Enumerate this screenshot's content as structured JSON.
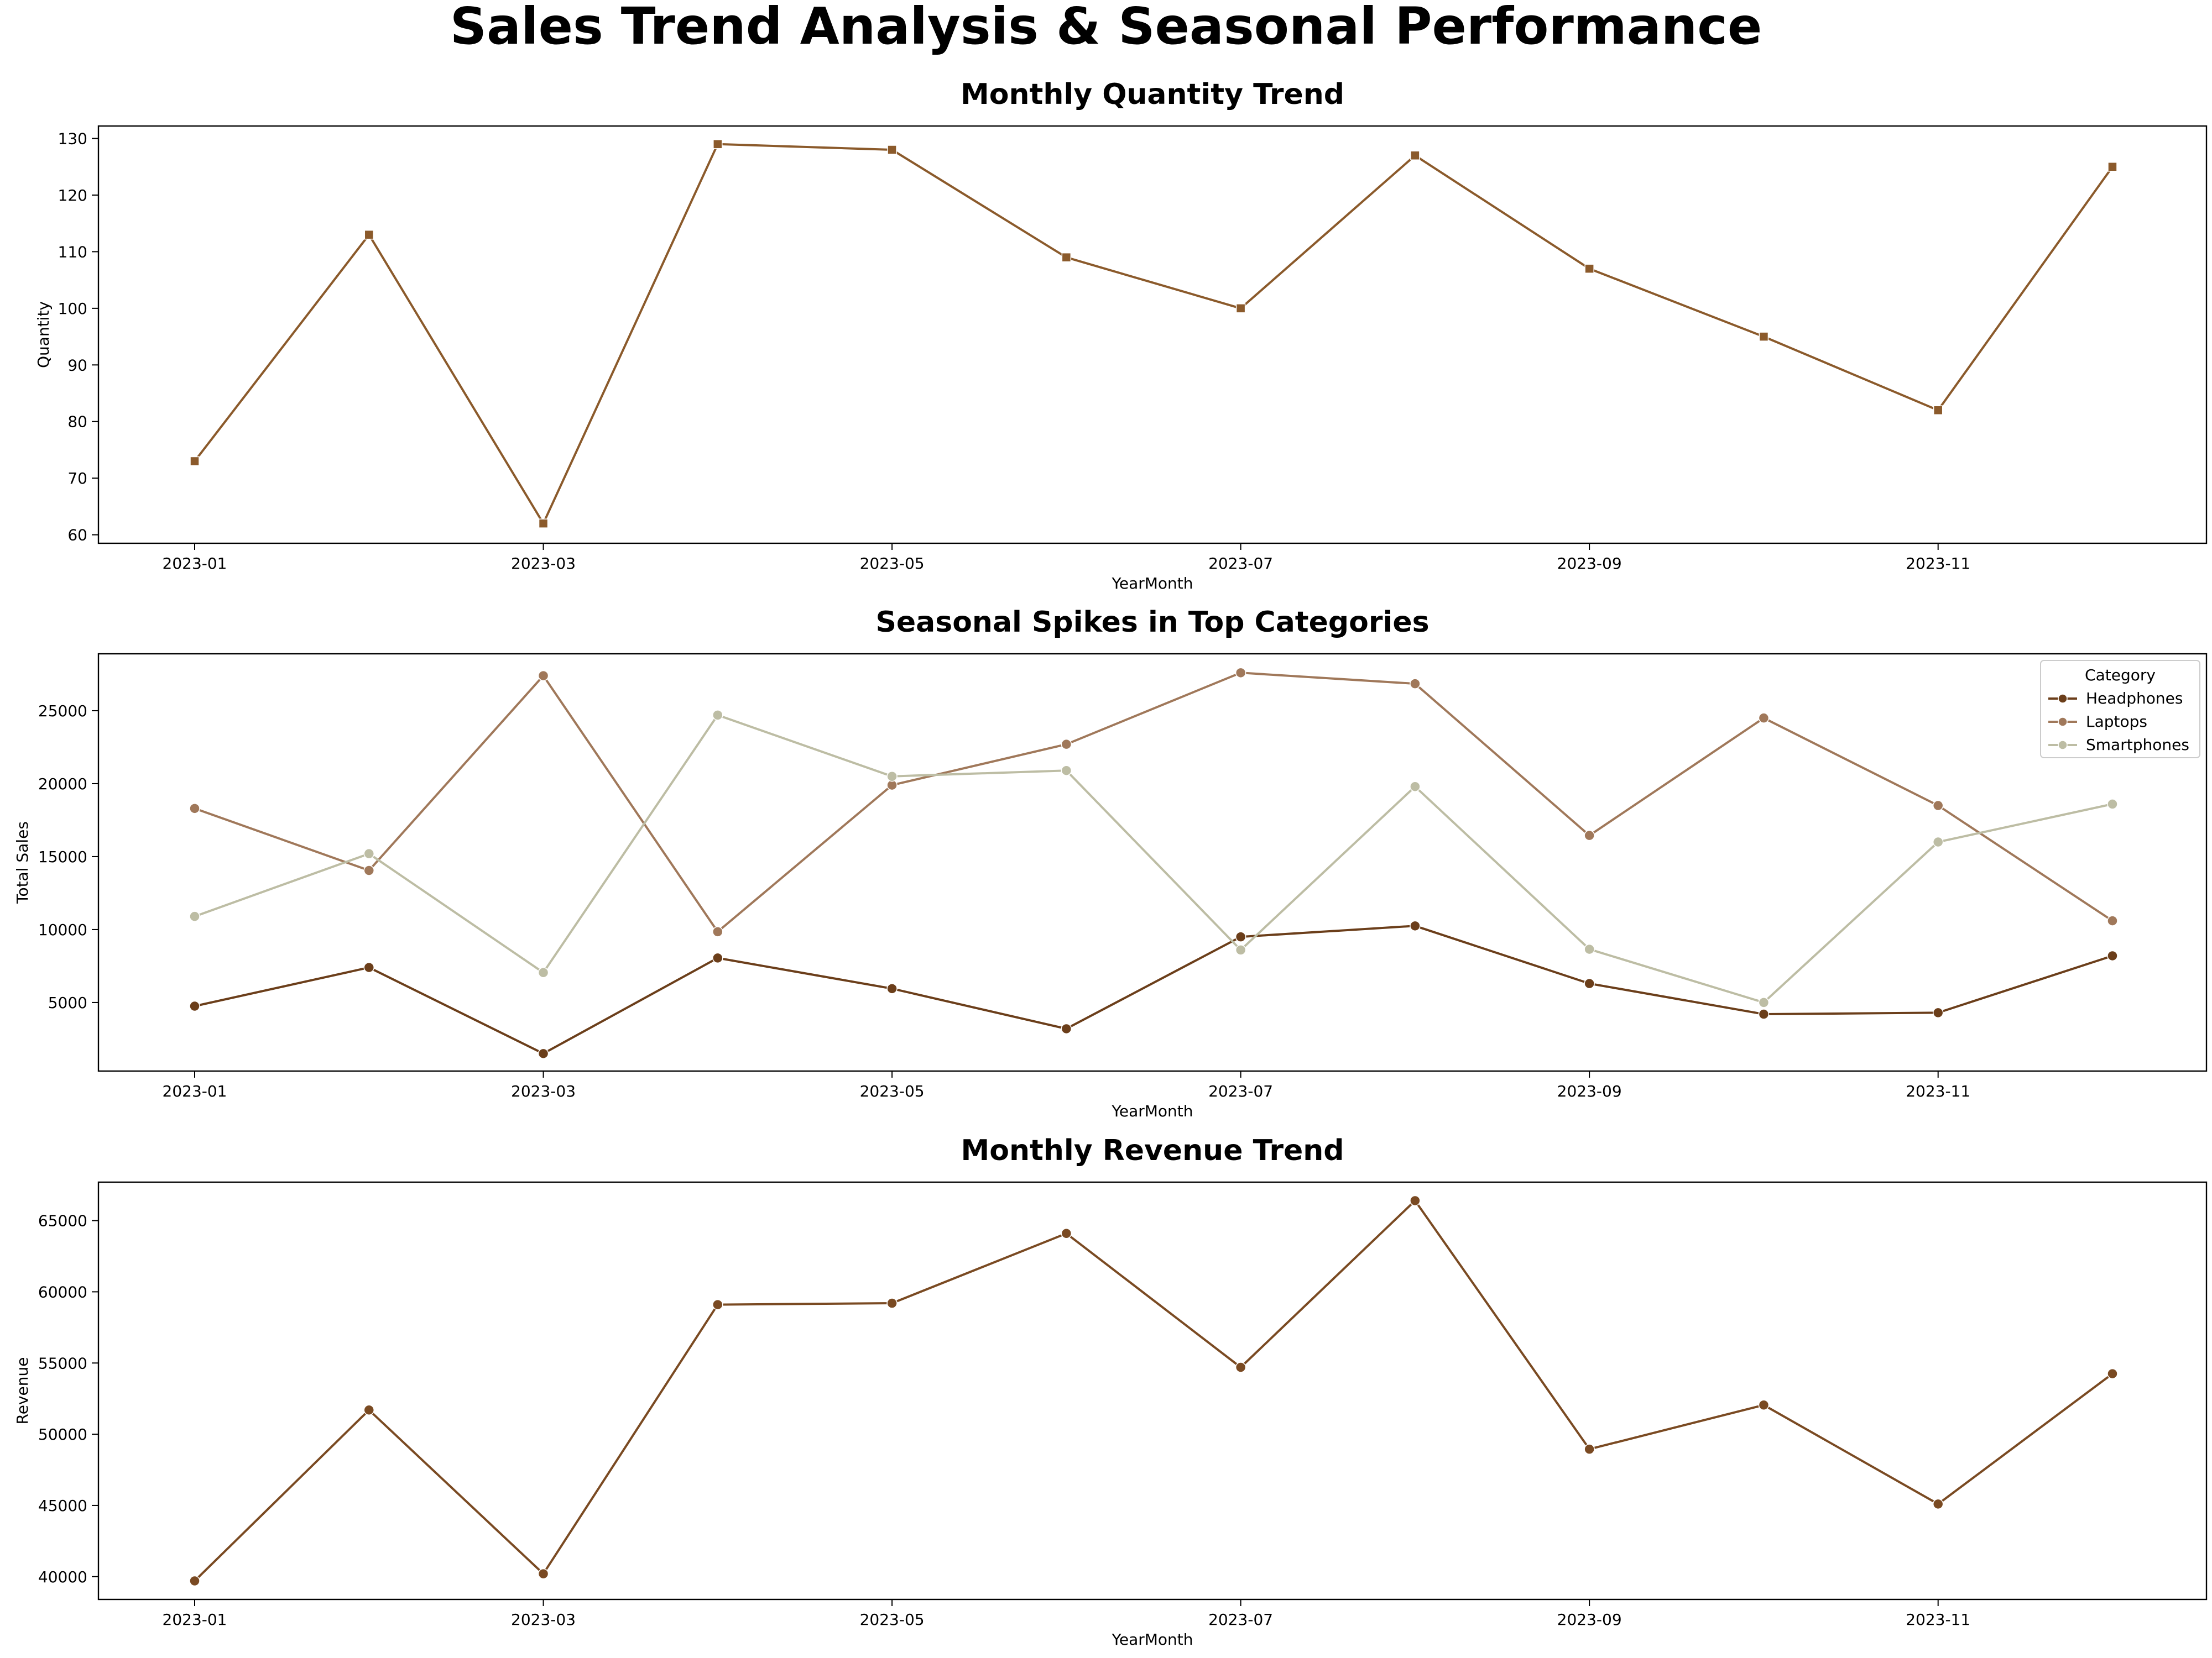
{
  "suptitle": "Sales Trend Analysis & Seasonal Performance",
  "colors": {
    "quantity": "#8B5A2B",
    "headphones": "#6B3E1A",
    "laptops": "#A0785A",
    "smartphones": "#BDBDA4",
    "revenue": "#7A4A22"
  },
  "chart_data": [
    {
      "type": "line",
      "title": "Monthly Quantity Trend",
      "xlabel": "YearMonth",
      "ylabel": "Quantity",
      "x": [
        "2023-01",
        "2023-02",
        "2023-03",
        "2023-04",
        "2023-05",
        "2023-06",
        "2023-07",
        "2023-08",
        "2023-09",
        "2023-10",
        "2023-11",
        "2023-12"
      ],
      "xticks": [
        "2023-01",
        "2023-03",
        "2023-05",
        "2023-07",
        "2023-09",
        "2023-11"
      ],
      "ylim": [
        58.5,
        132.2
      ],
      "yticks": [
        60,
        70,
        80,
        90,
        100,
        110,
        120,
        130
      ],
      "marker": "square",
      "series": [
        {
          "color_key": "quantity",
          "values": [
            73,
            113,
            62,
            129,
            128,
            109,
            100,
            127,
            107,
            95,
            82,
            125
          ]
        }
      ]
    },
    {
      "type": "line",
      "title": "Seasonal Spikes in Top Categories",
      "xlabel": "YearMonth",
      "ylabel": "Total Sales",
      "x": [
        "2023-01",
        "2023-02",
        "2023-03",
        "2023-04",
        "2023-05",
        "2023-06",
        "2023-07",
        "2023-08",
        "2023-09",
        "2023-10",
        "2023-11",
        "2023-12"
      ],
      "xticks": [
        "2023-01",
        "2023-03",
        "2023-05",
        "2023-07",
        "2023-09",
        "2023-11"
      ],
      "ylim": [
        300,
        28900
      ],
      "yticks": [
        5000,
        10000,
        15000,
        20000,
        25000
      ],
      "marker": "circle",
      "legend": {
        "title": "Category",
        "placement": "top-right"
      },
      "series": [
        {
          "name": "Headphones",
          "color_key": "headphones",
          "values": [
            4750,
            7400,
            1500,
            8050,
            5950,
            3200,
            9500,
            10250,
            6300,
            4200,
            4300,
            8200
          ]
        },
        {
          "name": "Laptops",
          "color_key": "laptops",
          "values": [
            18300,
            14050,
            27400,
            9850,
            19900,
            22700,
            27600,
            26850,
            16450,
            24500,
            18500,
            10600
          ]
        },
        {
          "name": "Smartphones",
          "color_key": "smartphones",
          "values": [
            10900,
            15200,
            7050,
            24700,
            20500,
            20900,
            8600,
            19800,
            8650,
            5000,
            16000,
            18600
          ]
        }
      ]
    },
    {
      "type": "line",
      "title": "Monthly Revenue Trend",
      "xlabel": "YearMonth",
      "ylabel": "Revenue",
      "x": [
        "2023-01",
        "2023-02",
        "2023-03",
        "2023-04",
        "2023-05",
        "2023-06",
        "2023-07",
        "2023-08",
        "2023-09",
        "2023-10",
        "2023-11",
        "2023-12"
      ],
      "xticks": [
        "2023-01",
        "2023-03",
        "2023-05",
        "2023-07",
        "2023-09",
        "2023-11"
      ],
      "ylim": [
        38400,
        67700
      ],
      "yticks": [
        40000,
        45000,
        50000,
        55000,
        60000,
        65000
      ],
      "marker": "circle",
      "series": [
        {
          "color_key": "revenue",
          "values": [
            39700,
            51700,
            40200,
            59100,
            59200,
            64100,
            54700,
            66400,
            48950,
            52050,
            45100,
            54250
          ]
        }
      ]
    }
  ]
}
